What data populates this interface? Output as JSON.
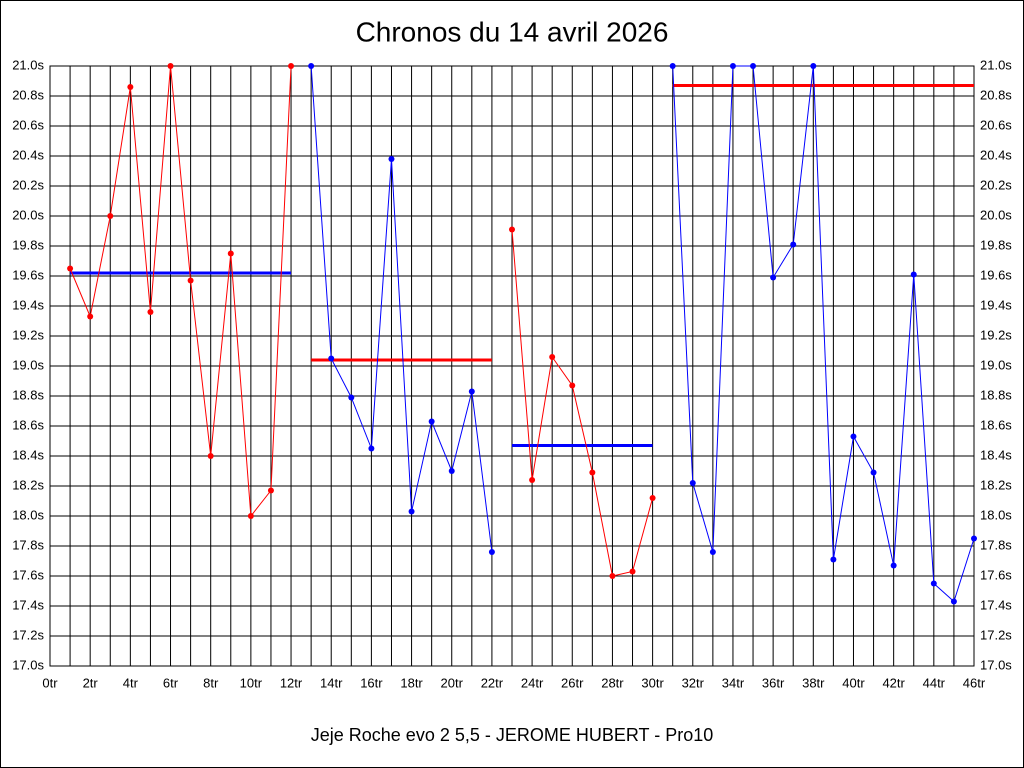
{
  "chart_data": {
    "type": "line",
    "title": "Chronos du 14 avril 2026",
    "subtitle": "Jeje Roche evo 2 5,5 - JEROME HUBERT - Pro10",
    "xlim": [
      0,
      46
    ],
    "ylim": [
      17,
      21
    ],
    "grid": true,
    "xticks": [
      {
        "value": 0,
        "label": "0tr"
      },
      {
        "value": 2,
        "label": "2tr"
      },
      {
        "value": 4,
        "label": "4tr"
      },
      {
        "value": 6,
        "label": "6tr"
      },
      {
        "value": 8,
        "label": "8tr"
      },
      {
        "value": 10,
        "label": "10tr"
      },
      {
        "value": 12,
        "label": "12tr"
      },
      {
        "value": 14,
        "label": "14tr"
      },
      {
        "value": 16,
        "label": "16tr"
      },
      {
        "value": 18,
        "label": "18tr"
      },
      {
        "value": 20,
        "label": "20tr"
      },
      {
        "value": 22,
        "label": "22tr"
      },
      {
        "value": 24,
        "label": "24tr"
      },
      {
        "value": 26,
        "label": "26tr"
      },
      {
        "value": 28,
        "label": "28tr"
      },
      {
        "value": 30,
        "label": "30tr"
      },
      {
        "value": 32,
        "label": "32tr"
      },
      {
        "value": 34,
        "label": "34tr"
      },
      {
        "value": 36,
        "label": "36tr"
      },
      {
        "value": 38,
        "label": "38tr"
      },
      {
        "value": 40,
        "label": "40tr"
      },
      {
        "value": 42,
        "label": "42tr"
      },
      {
        "value": 44,
        "label": "44tr"
      },
      {
        "value": 46,
        "label": "46tr"
      }
    ],
    "xminorticks": [
      1,
      3,
      5,
      7,
      9,
      11,
      13,
      15,
      17,
      19,
      21,
      23,
      25,
      27,
      29,
      31,
      33,
      35,
      37,
      39,
      41,
      43,
      45
    ],
    "yticks": [
      {
        "value": 17.0,
        "label": "17.0s"
      },
      {
        "value": 17.2,
        "label": "17.2s"
      },
      {
        "value": 17.4,
        "label": "17.4s"
      },
      {
        "value": 17.6,
        "label": "17.6s"
      },
      {
        "value": 17.8,
        "label": "17.8s"
      },
      {
        "value": 18.0,
        "label": "18.0s"
      },
      {
        "value": 18.2,
        "label": "18.2s"
      },
      {
        "value": 18.4,
        "label": "18.4s"
      },
      {
        "value": 18.6,
        "label": "18.6s"
      },
      {
        "value": 18.8,
        "label": "18.8s"
      },
      {
        "value": 19.0,
        "label": "19.0s"
      },
      {
        "value": 19.2,
        "label": "19.2s"
      },
      {
        "value": 19.4,
        "label": "19.4s"
      },
      {
        "value": 19.6,
        "label": "19.6s"
      },
      {
        "value": 19.8,
        "label": "19.8s"
      },
      {
        "value": 20.0,
        "label": "20.0s"
      },
      {
        "value": 20.2,
        "label": "20.2s"
      },
      {
        "value": 20.4,
        "label": "20.4s"
      },
      {
        "value": 20.6,
        "label": "20.6s"
      },
      {
        "value": 20.8,
        "label": "20.8s"
      },
      {
        "value": 21.0,
        "label": "21.0s"
      }
    ],
    "series": [
      {
        "color": "#ff0000",
        "x": [
          1,
          2,
          3,
          4,
          5,
          6,
          7,
          8,
          9,
          10,
          11,
          12
        ],
        "values": [
          19.65,
          19.33,
          20.0,
          20.86,
          19.36,
          21.0,
          19.57,
          18.4,
          19.75,
          18.0,
          18.17,
          21.0
        ]
      },
      {
        "color": "#0000ff",
        "x": [
          13,
          14,
          15,
          16,
          17,
          18,
          19,
          20,
          21,
          22
        ],
        "values": [
          21.0,
          19.05,
          18.79,
          18.45,
          20.38,
          18.03,
          18.63,
          18.3,
          18.83,
          17.76
        ]
      },
      {
        "color": "#ff0000",
        "x": [
          23,
          24,
          25,
          26,
          27,
          28,
          29,
          30
        ],
        "values": [
          19.91,
          18.24,
          19.06,
          18.87,
          18.29,
          17.6,
          17.63,
          18.12
        ]
      },
      {
        "color": "#0000ff",
        "x": [
          31,
          32,
          33,
          34,
          35,
          36,
          37,
          38,
          39,
          40,
          41,
          42,
          43,
          44,
          45,
          46
        ],
        "values": [
          21.0,
          18.22,
          17.76,
          21.0,
          21.0,
          19.59,
          19.81,
          21.0,
          17.71,
          18.53,
          18.29,
          17.67,
          19.61,
          17.55,
          17.43,
          17.85
        ]
      }
    ],
    "means": [
      {
        "color": "#0000ff",
        "value": 19.62,
        "x": [
          1,
          12
        ]
      },
      {
        "color": "#ff0000",
        "value": 19.04,
        "x": [
          13,
          22
        ]
      },
      {
        "color": "#0000ff",
        "value": 18.47,
        "x": [
          23,
          30
        ]
      },
      {
        "color": "#ff0000",
        "value": 20.87,
        "x": [
          31,
          46
        ]
      }
    ]
  }
}
